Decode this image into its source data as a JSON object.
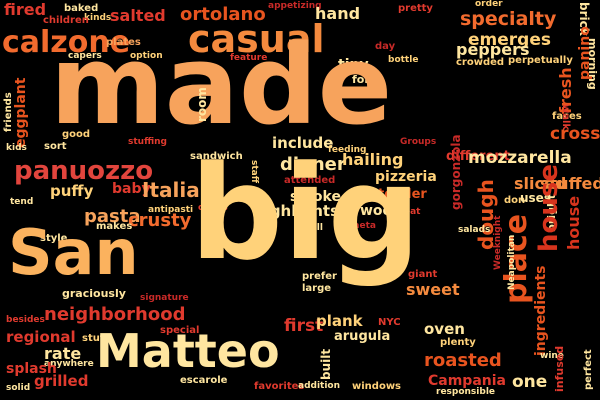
{
  "words": [
    {
      "text": "made",
      "color": "#f7a35c"
    },
    {
      "text": "big",
      "color": "#ffd27a"
    },
    {
      "text": "San",
      "color": "#fbb25e"
    },
    {
      "text": "Matteo",
      "color": "#ffe6a0"
    },
    {
      "text": "casual",
      "color": "#f48a3e"
    },
    {
      "text": "calzone",
      "color": "#f26b2e"
    },
    {
      "text": "place",
      "color": "#e8541f"
    },
    {
      "text": "dough",
      "color": "#e8541f"
    },
    {
      "text": "house",
      "color": "#d8341d"
    },
    {
      "text": "panuozzo",
      "color": "#e2453d"
    },
    {
      "text": "pasta",
      "color": "#f7a35c"
    },
    {
      "text": "Italian",
      "color": "#f7a35c"
    },
    {
      "text": "neighborhood",
      "color": "#e03a2e"
    },
    {
      "text": "mozzarella",
      "color": "#ffe6a0"
    },
    {
      "text": "pizzeria",
      "color": "#ffd27a"
    },
    {
      "text": "crusty",
      "color": "#f26b2e"
    },
    {
      "text": "highlights",
      "color": "#ffe6a0"
    },
    {
      "text": "dinner",
      "color": "#ffe6a0"
    },
    {
      "text": "hailing",
      "color": "#ffd27a"
    },
    {
      "text": "sliced",
      "color": "#f48a3e"
    },
    {
      "text": "stuffed",
      "color": "#f48a3e"
    },
    {
      "text": "cross",
      "color": "#e8541f"
    },
    {
      "text": "fresh",
      "color": "#e8541f"
    },
    {
      "text": "panino",
      "color": "#e8541f"
    },
    {
      "text": "specialty",
      "color": "#f26b2e"
    },
    {
      "text": "emerges",
      "color": "#ffd27a"
    },
    {
      "text": "peppers",
      "color": "#ffe6a0"
    },
    {
      "text": "salted",
      "color": "#e03a2e"
    },
    {
      "text": "ortolano",
      "color": "#e8541f"
    },
    {
      "text": "hand",
      "color": "#ffe6a0"
    },
    {
      "text": "fired",
      "color": "#e03a2e"
    },
    {
      "text": "baked",
      "color": "#ffe6a0"
    },
    {
      "text": "kinds",
      "color": "#ffd27a"
    },
    {
      "text": "children",
      "color": "#e03a2e"
    },
    {
      "text": "appetizing",
      "color": "#c82a28"
    },
    {
      "text": "pretty",
      "color": "#e03a2e"
    },
    {
      "text": "order",
      "color": "#ffd27a"
    },
    {
      "text": "brick",
      "color": "#ffe6a0"
    },
    {
      "text": "capers",
      "color": "#ffe6a0"
    },
    {
      "text": "option",
      "color": "#ffd27a"
    },
    {
      "text": "plates",
      "color": "#f7a35c"
    },
    {
      "text": "feature",
      "color": "#e03a2e"
    },
    {
      "text": "tiny",
      "color": "#ffe6a0"
    },
    {
      "text": "bottle",
      "color": "#ffd27a"
    },
    {
      "text": "folks",
      "color": "#ffe6a0"
    },
    {
      "text": "day",
      "color": "#c82a28"
    },
    {
      "text": "crowded",
      "color": "#ffd27a"
    },
    {
      "text": "perpetually",
      "color": "#ffd27a"
    },
    {
      "text": "morning",
      "color": "#ffe6a0"
    },
    {
      "text": "faces",
      "color": "#ffd27a"
    },
    {
      "text": "walk",
      "color": "#e03a2e"
    },
    {
      "text": "friends",
      "color": "#ffe6a0"
    },
    {
      "text": "eggplant",
      "color": "#e8541f"
    },
    {
      "text": "room",
      "color": "#ffe6a0"
    },
    {
      "text": "good",
      "color": "#ffd27a"
    },
    {
      "text": "sort",
      "color": "#ffe6a0"
    },
    {
      "text": "kids",
      "color": "#ffe6a0"
    },
    {
      "text": "stuffing",
      "color": "#e03a2e"
    },
    {
      "text": "sandwich",
      "color": "#ffe6a0"
    },
    {
      "text": "include",
      "color": "#ffe6a0"
    },
    {
      "text": "feeding",
      "color": "#ffd27a"
    },
    {
      "text": "Groups",
      "color": "#c82a28"
    },
    {
      "text": "different",
      "color": "#e03a2e"
    },
    {
      "text": "attended",
      "color": "#c82a28"
    },
    {
      "text": "gorgonzola",
      "color": "#c82a28"
    },
    {
      "text": "staff",
      "color": "#ffd27a"
    },
    {
      "text": "tender",
      "color": "#e8541f"
    },
    {
      "text": "smoke",
      "color": "#ffe6a0"
    },
    {
      "text": "puffy",
      "color": "#ffd27a"
    },
    {
      "text": "baby",
      "color": "#e03a2e"
    },
    {
      "text": "tend",
      "color": "#ffe6a0"
    },
    {
      "text": "antipasti",
      "color": "#ffd27a"
    },
    {
      "text": "olives",
      "color": "#e03a2e"
    },
    {
      "text": "wood",
      "color": "#ffe6a0"
    },
    {
      "text": "eat",
      "color": "#e03a2e"
    },
    {
      "text": "small",
      "color": "#ffe6a0"
    },
    {
      "text": "Gaeta",
      "color": "#c82a28"
    },
    {
      "text": "uses",
      "color": "#ffe6a0"
    },
    {
      "text": "don",
      "color": "#ffd27a"
    },
    {
      "text": "bright",
      "color": "#ffe6a0"
    },
    {
      "text": "makes",
      "color": "#ffe6a0"
    },
    {
      "text": "style",
      "color": "#ffe6a0"
    },
    {
      "text": "salads",
      "color": "#ffe6a0"
    },
    {
      "text": "Weeknight",
      "color": "#c82a28"
    },
    {
      "text": "Neapolitan",
      "color": "#ffe6a0"
    },
    {
      "text": "giant",
      "color": "#e03a2e"
    },
    {
      "text": "prefer",
      "color": "#ffe6a0"
    },
    {
      "text": "large",
      "color": "#ffe6a0"
    },
    {
      "text": "graciously",
      "color": "#ffe6a0"
    },
    {
      "text": "signature",
      "color": "#c82a28"
    },
    {
      "text": "sweet",
      "color": "#f48a3e"
    },
    {
      "text": "ingredients",
      "color": "#e8541f"
    },
    {
      "text": "besides",
      "color": "#e03a2e"
    },
    {
      "text": "special",
      "color": "#e03a2e"
    },
    {
      "text": "first",
      "color": "#e03a2e"
    },
    {
      "text": "plank",
      "color": "#ffd27a"
    },
    {
      "text": "NYC",
      "color": "#e03a2e"
    },
    {
      "text": "oven",
      "color": "#ffe6a0"
    },
    {
      "text": "plenty",
      "color": "#ffd27a"
    },
    {
      "text": "regional",
      "color": "#e03a2e"
    },
    {
      "text": "stuff",
      "color": "#ffd27a"
    },
    {
      "text": "rate",
      "color": "#ffe6a0"
    },
    {
      "text": "anywhere",
      "color": "#ffe6a0"
    },
    {
      "text": "arugula",
      "color": "#ffe6a0"
    },
    {
      "text": "built",
      "color": "#ffe6a0"
    },
    {
      "text": "roasted",
      "color": "#e8541f"
    },
    {
      "text": "wine",
      "color": "#ffe6a0"
    },
    {
      "text": "infused",
      "color": "#e03a2e"
    },
    {
      "text": "perfect",
      "color": "#ffe6a0"
    },
    {
      "text": "splash",
      "color": "#e03a2e"
    },
    {
      "text": "grilled",
      "color": "#e03a2e"
    },
    {
      "text": "solid",
      "color": "#ffe6a0"
    },
    {
      "text": "escarole",
      "color": "#ffe6a0"
    },
    {
      "text": "favorites",
      "color": "#e03a2e"
    },
    {
      "text": "addition",
      "color": "#ffe6a0"
    },
    {
      "text": "windows",
      "color": "#ffd27a"
    },
    {
      "text": "Campania",
      "color": "#e03a2e"
    },
    {
      "text": "responsible",
      "color": "#ffe6a0"
    },
    {
      "text": "one",
      "color": "#ffe6a0"
    }
  ]
}
